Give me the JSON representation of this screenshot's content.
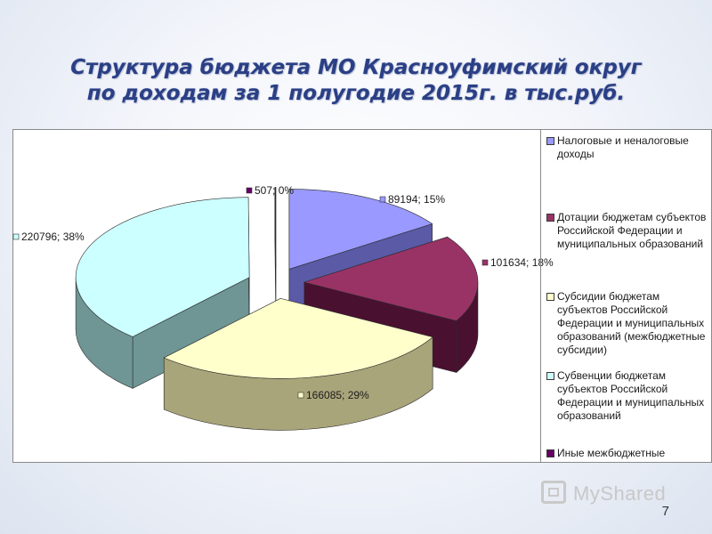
{
  "title": {
    "line1": "Структура бюджета МО Красноуфимский округ",
    "line2": "по доходам за 1 полугодие 2015г. в тыс.руб."
  },
  "chart_data": {
    "type": "pie",
    "style": "3d-exploded",
    "series": [
      {
        "name": "Налоговые и неналоговые доходы",
        "value": 89194,
        "label": "89194; 15%",
        "color": "#9999ff",
        "dark": "#5a5aa6"
      },
      {
        "name": "Дотации бюджетам субъектов Российской Федерации и муниципальных образований",
        "value": 101634,
        "label": "101634; 18%",
        "color": "#993366",
        "dark": "#4a1030"
      },
      {
        "name": "Субсидии бюджетам субъектов Российской Федерации и муниципальных образований (межбюджетные субсидии)",
        "value": 166085,
        "label": "166085; 29%",
        "color": "#ffffcc",
        "dark": "#a9a57a"
      },
      {
        "name": "Субвенции бюджетам субъектов Российской Федерации и муниципальных образований",
        "value": 220796,
        "label": "220796; 38%",
        "color": "#ccffff",
        "dark": "#6f9595"
      },
      {
        "name": "Иные межбюджетные",
        "value": 507,
        "label": "507; 0%",
        "color": "#660066",
        "dark": "#330033"
      }
    ],
    "legend_position": "right"
  },
  "page_number": "7",
  "watermark": "MyShared"
}
